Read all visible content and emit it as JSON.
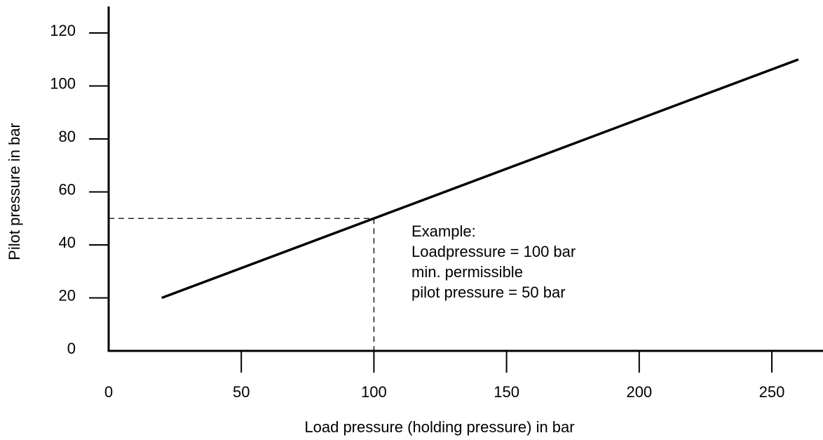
{
  "chart_data": {
    "type": "line",
    "x_label": "Load pressure (holding pressure) in bar",
    "y_label": "Pilot pressure in bar",
    "series": [
      {
        "name": "pilot pressure",
        "color": "#000000",
        "x": [
          20,
          260
        ],
        "values": [
          20,
          110
        ]
      }
    ],
    "xlim": [
      0,
      270
    ],
    "ylim": [
      0,
      130
    ],
    "xticks": [
      0,
      50,
      100,
      150,
      200,
      250
    ],
    "yticks": [
      0,
      20,
      40,
      60,
      80,
      100,
      120
    ],
    "example_point": {
      "x": 100,
      "y": 50
    },
    "annotation": [
      "Example:",
      "Loadpressure = 100 bar",
      "min. permissible",
      "pilot pressure = 50 bar"
    ]
  }
}
